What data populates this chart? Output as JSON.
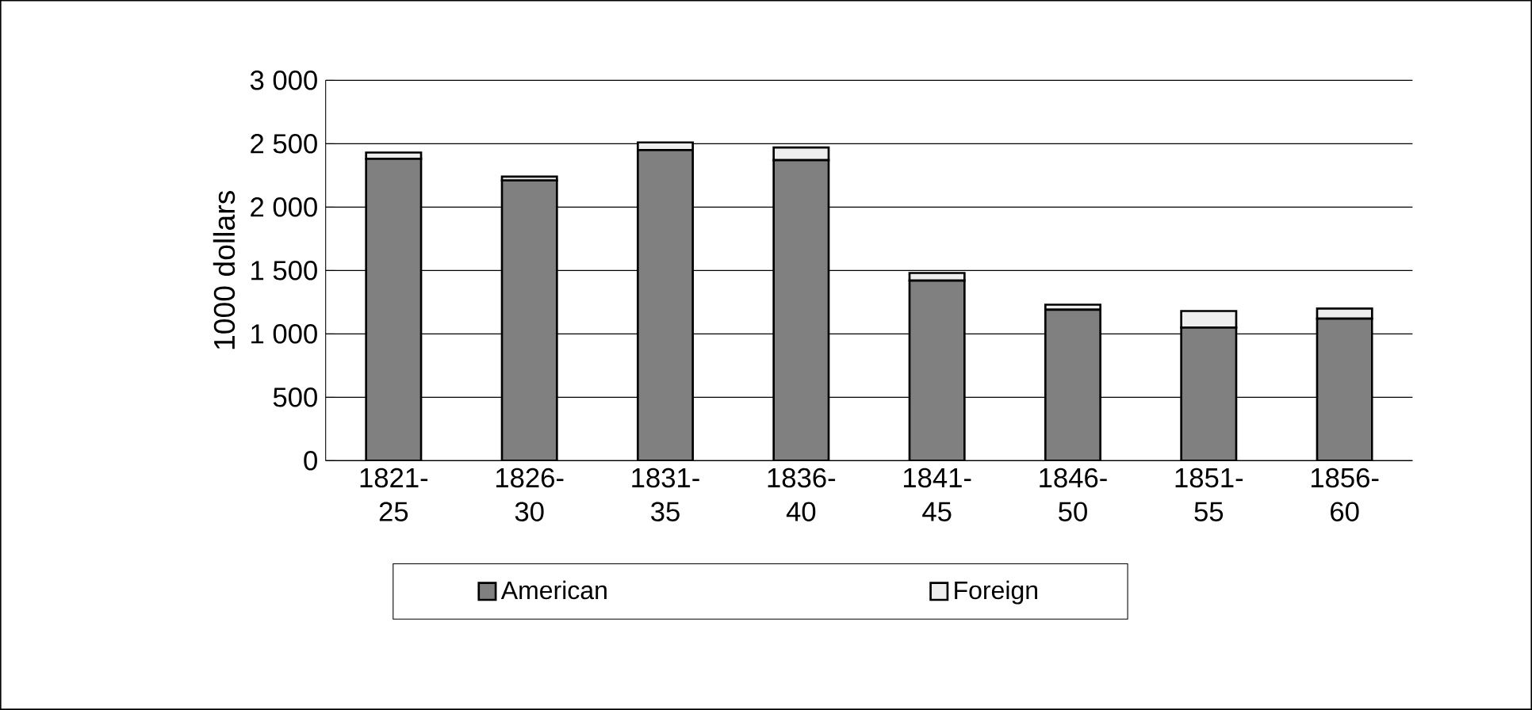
{
  "chart_data": {
    "type": "bar",
    "stacked": true,
    "ylabel": "1000 dollars",
    "categories": [
      "1821-25",
      "1826-30",
      "1831-35",
      "1836-40",
      "1841-45",
      "1846-50",
      "1851-55",
      "1856-60"
    ],
    "series": [
      {
        "name": "American",
        "color": "#808080",
        "values": [
          2380,
          2210,
          2450,
          2370,
          1420,
          1190,
          1050,
          1120
        ]
      },
      {
        "name": "Foreign",
        "color": "#eeeeee",
        "values": [
          50,
          30,
          60,
          100,
          60,
          40,
          130,
          80
        ]
      }
    ],
    "ylim": [
      0,
      3000
    ],
    "yticks": [
      {
        "value": 0,
        "label": "0"
      },
      {
        "value": 500,
        "label": "500"
      },
      {
        "value": 1000,
        "label": "1 000"
      },
      {
        "value": 1500,
        "label": "1 500"
      },
      {
        "value": 2000,
        "label": "2 000"
      },
      {
        "value": 2500,
        "label": "2 500"
      },
      {
        "value": 3000,
        "label": "3 000"
      }
    ],
    "grid": "y",
    "legend": "bottom"
  }
}
